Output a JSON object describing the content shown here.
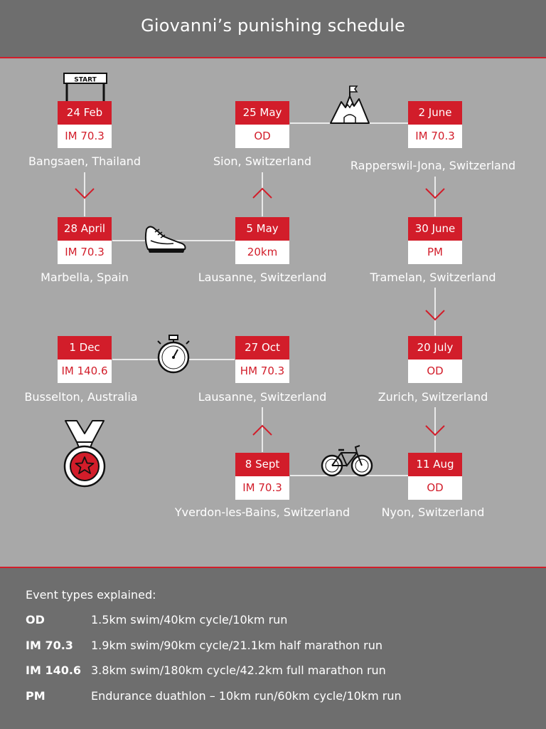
{
  "title": "Giovanni’s punishing schedule",
  "events": [
    {
      "id": "bangsaen",
      "date": "24 Feb",
      "type": "IM 70.3",
      "location": "Bangsaen, Thailand"
    },
    {
      "id": "marbella",
      "date": "28 April",
      "type": "IM 70.3",
      "location": "Marbella, Spain"
    },
    {
      "id": "lausanne-may",
      "date": "5 May",
      "type": "20km",
      "location": "Lausanne, Switzerland"
    },
    {
      "id": "sion",
      "date": "25 May",
      "type": "OD",
      "location": "Sion, Switzerland"
    },
    {
      "id": "rapperswil",
      "date": "2 June",
      "type": "IM 70.3",
      "location": "Rapperswil-Jona, Switzerland"
    },
    {
      "id": "tramelan",
      "date": "30 June",
      "type": "PM",
      "location": "Tramelan, Switzerland"
    },
    {
      "id": "zurich",
      "date": "20 July",
      "type": "OD",
      "location": "Zurich, Switzerland"
    },
    {
      "id": "nyon",
      "date": "11 Aug",
      "type": "OD",
      "location": "Nyon, Switzerland"
    },
    {
      "id": "yverdon",
      "date": "8 Sept",
      "type": "IM 70.3",
      "location": "Yverdon-les-Bains, Switzerland"
    },
    {
      "id": "lausanne-oct",
      "date": "27 Oct",
      "type": "HM 70.3",
      "location": "Lausanne, Switzerland"
    },
    {
      "id": "busselton",
      "date": "1 Dec",
      "type": "IM 140.6",
      "location": "Busselton, Australia"
    }
  ],
  "icons": {
    "start": {
      "name": "start-sign-icon",
      "label": "START"
    },
    "mountain": {
      "name": "mountain-flag-icon"
    },
    "shoe": {
      "name": "running-shoe-icon"
    },
    "stopwatch": {
      "name": "stopwatch-icon"
    },
    "bike": {
      "name": "bicycle-icon"
    },
    "medal": {
      "name": "medal-icon"
    }
  },
  "legend": {
    "heading": "Event types explained:",
    "items": [
      {
        "code": "OD",
        "description": "1.5km swim/40km cycle/10km run"
      },
      {
        "code": "IM 70.3",
        "description": "1.9km swim/90km cycle/21.1km half marathon run"
      },
      {
        "code": "IM 140.6",
        "description": "3.8km swim/180km cycle/42.2km full marathon run"
      },
      {
        "code": "PM",
        "description": "Endurance duathlon – 10km run/60km cycle/10km run"
      }
    ]
  },
  "colors": {
    "accent": "#d21d2a",
    "panel": "#a8a8a8",
    "header": "#6e6e6e",
    "text": "#ffffff"
  }
}
